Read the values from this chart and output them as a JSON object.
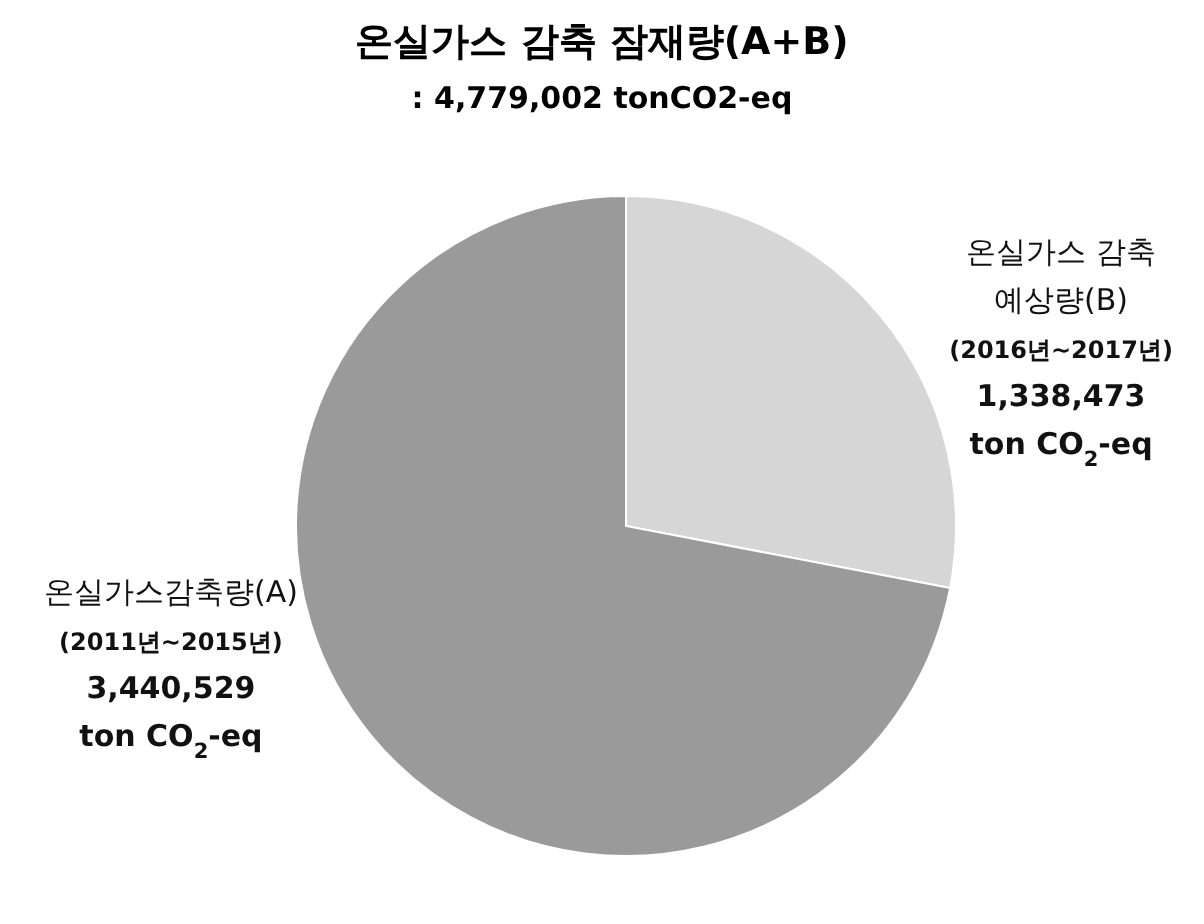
{
  "chart_data": {
    "type": "pie",
    "title": "온실가스 감축 잠재량(A+B)",
    "subtitle": ": 4,779,002 tonCO2-eq",
    "categories": [
      "온실가스 감축\n예상량(B)\n(2016년~2017년)",
      "온실가스감축량(A)\n(2011년~2015년)"
    ],
    "values": [
      1338473,
      3440529
    ],
    "value_labels": [
      "1,338,473\nton CO$_{2}$-eq",
      "3,440,529\nton CO$_{2}$-eq"
    ],
    "colors": [
      "#d6d6d6",
      "#9a9a9a"
    ],
    "legend": false
  }
}
